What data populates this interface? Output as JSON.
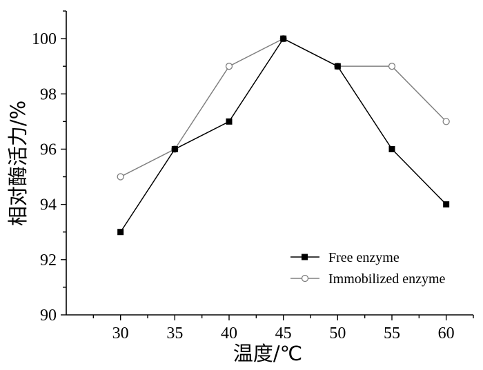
{
  "chart_data": {
    "type": "line",
    "x": [
      30,
      35,
      40,
      45,
      50,
      55,
      60
    ],
    "series": [
      {
        "name": "Free enzyme",
        "values": [
          93,
          96,
          97,
          100,
          99,
          96,
          94
        ],
        "color": "#000000",
        "marker": "filled-square"
      },
      {
        "name": "Immobilized enzyme",
        "values": [
          95,
          96,
          99,
          100,
          99,
          99,
          97
        ],
        "color": "#808080",
        "marker": "open-circle"
      }
    ],
    "xlabel": "温度/℃",
    "ylabel": "相对酶活力/%",
    "xlim": [
      25,
      62.5
    ],
    "ylim": [
      90,
      101
    ],
    "xticks": [
      "30",
      "35",
      "40",
      "45",
      "50",
      "55",
      "60"
    ],
    "yticks": [
      "90",
      "92",
      "94",
      "96",
      "98",
      "100"
    ],
    "grid": false,
    "legend_position": "bottom-right"
  }
}
